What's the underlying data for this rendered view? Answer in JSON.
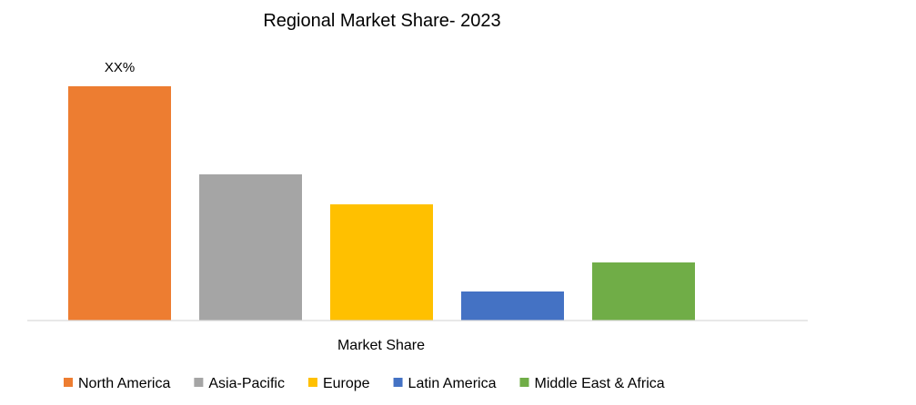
{
  "chart_data": {
    "type": "bar",
    "title": "Regional Market Share- 2023",
    "xlabel": "Market Share",
    "ylabel": "",
    "categories": [
      "Market Share"
    ],
    "series": [
      {
        "name": "North America",
        "values": [
          100
        ],
        "color": "#ED7D31",
        "data_label": "XX%"
      },
      {
        "name": "Asia-Pacific",
        "values": [
          62.4
        ],
        "color": "#A5A5A5",
        "data_label": ""
      },
      {
        "name": "Europe",
        "values": [
          49.6
        ],
        "color": "#FFC000",
        "data_label": ""
      },
      {
        "name": "Latin America",
        "values": [
          12.4
        ],
        "color": "#4472C4",
        "data_label": ""
      },
      {
        "name": "Middle East & Africa",
        "values": [
          24.8
        ],
        "color": "#70AD47",
        "data_label": ""
      }
    ],
    "ylim": [
      0,
      100
    ],
    "grid": false,
    "legend_position": "bottom",
    "axis_color": "#D9D9D9"
  }
}
